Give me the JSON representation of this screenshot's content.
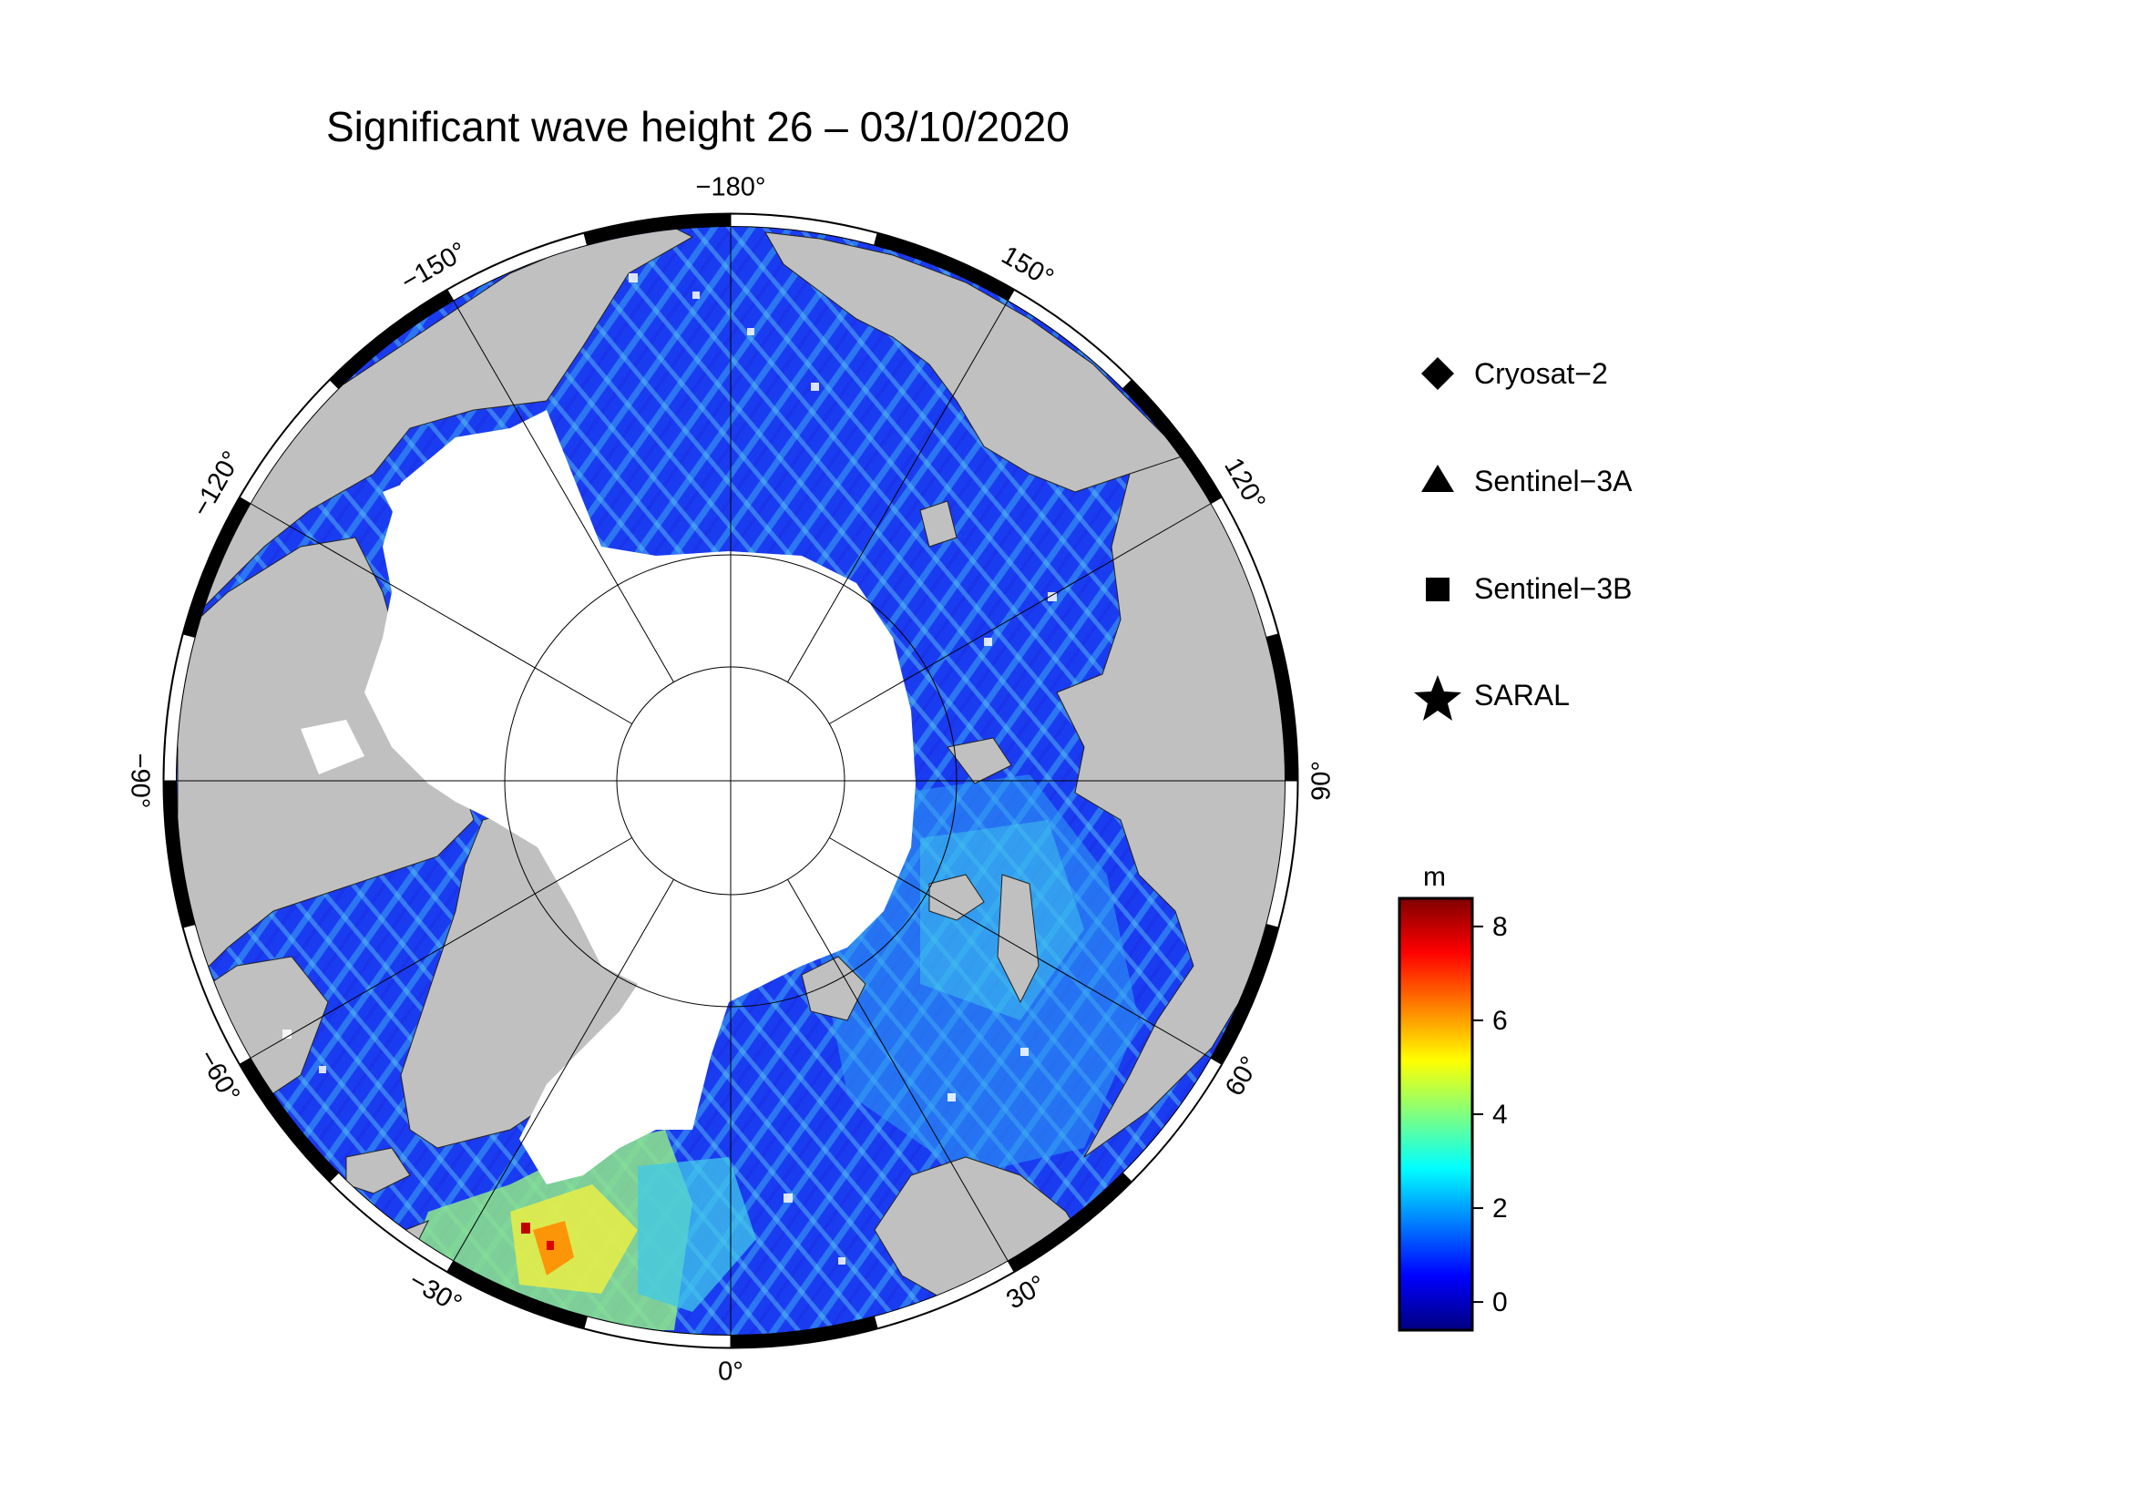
{
  "title": "Significant wave height 26 – 03/10/2020",
  "longitude_labels": [
    {
      "value": "−180",
      "deg": 180
    },
    {
      "value": "150",
      "deg": 150
    },
    {
      "value": "120",
      "deg": 120
    },
    {
      "value": "90",
      "deg": 90
    },
    {
      "value": "60",
      "deg": 60
    },
    {
      "value": "30",
      "deg": 30
    },
    {
      "value": "0",
      "deg": 0
    },
    {
      "value": "−30",
      "deg": -30
    },
    {
      "value": "−60",
      "deg": -60
    },
    {
      "value": "−90",
      "deg": -90
    },
    {
      "value": "−120",
      "deg": -120
    },
    {
      "value": "−150",
      "deg": -150
    }
  ],
  "legend": [
    {
      "label": "Cryosat−2",
      "symbol": "diamond-icon"
    },
    {
      "label": "Sentinel−3A",
      "symbol": "triangle-icon"
    },
    {
      "label": "Sentinel−3B",
      "symbol": "square-icon"
    },
    {
      "label": "SARAL",
      "symbol": "star-icon"
    }
  ],
  "colorbar": {
    "unit": "m",
    "min": -0.6,
    "max": 8.6,
    "ticks": [
      "0",
      "2",
      "4",
      "6",
      "8"
    ],
    "tick_values": [
      0,
      2,
      4,
      6,
      8
    ],
    "colors": [
      "#00007f",
      "#0000ff",
      "#007fff",
      "#00ffff",
      "#7fff7f",
      "#ffff00",
      "#ff7f00",
      "#ff0000",
      "#7f0000"
    ]
  },
  "map_colors": {
    "land": "#c0c0c0",
    "ice": "#ffffff",
    "ocean_low": "#1a3cf0",
    "ocean_mid": "#2a8cf0",
    "ocean_high": "#40d8e8"
  }
}
